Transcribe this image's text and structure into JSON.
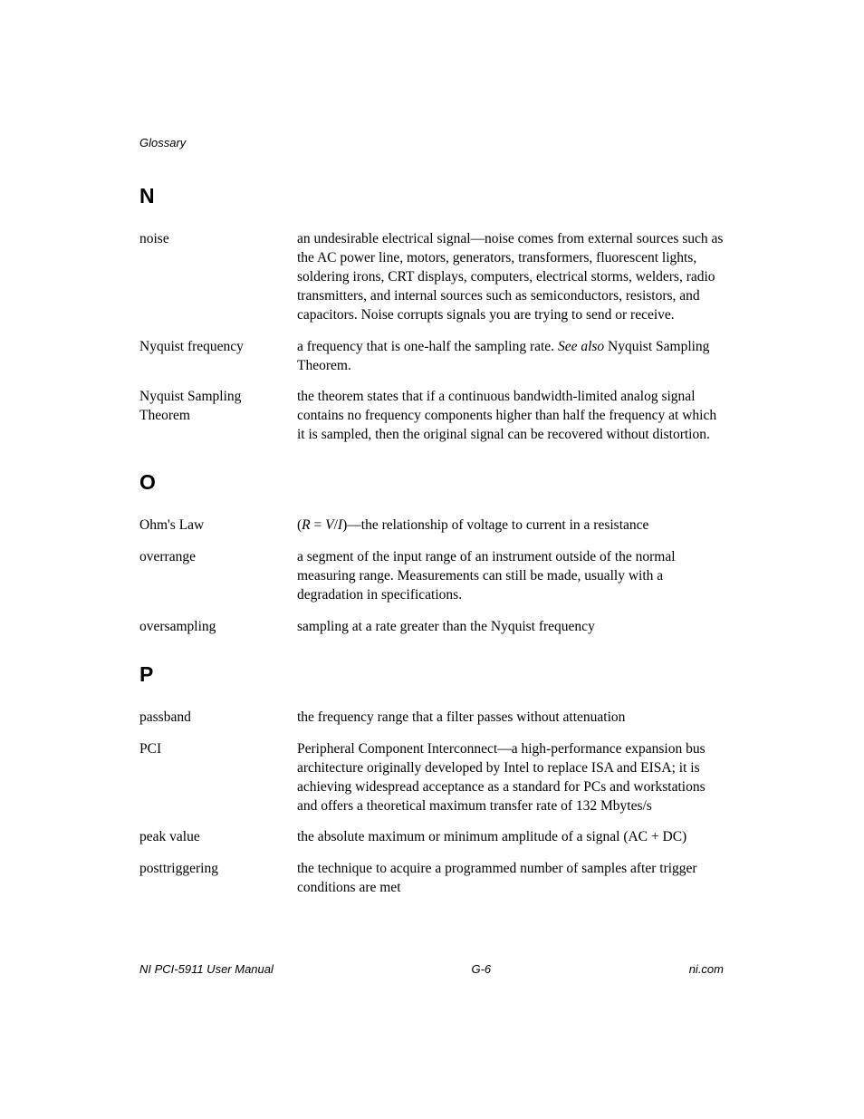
{
  "header": "Glossary",
  "sections": {
    "n": {
      "letter": "N",
      "entries": {
        "noise": {
          "term": "noise",
          "def": "an undesirable electrical signal—noise comes from external sources such as the AC power line, motors, generators, transformers, fluorescent lights, soldering irons, CRT displays, computers, electrical storms, welders, radio transmitters, and internal sources such as semiconductors, resistors, and capacitors. Noise corrupts signals you are trying to send or receive."
        },
        "nyquist_freq": {
          "term": "Nyquist frequency",
          "def_pre": "a frequency that is one-half the sampling rate. ",
          "see_also": "See also",
          "def_post": " Nyquist Sampling Theorem."
        },
        "nyquist_theorem": {
          "term": "Nyquist Sampling Theorem",
          "def": "the theorem states that if a continuous bandwidth-limited analog signal contains no frequency components higher than half the frequency at which it is sampled, then the original signal can be recovered without distortion."
        }
      }
    },
    "o": {
      "letter": "O",
      "entries": {
        "ohms_law": {
          "term": "Ohm's Law",
          "formula_open": "(",
          "formula_r": "R",
          "formula_eq": " = ",
          "formula_v": "V",
          "formula_slash": "/",
          "formula_i": "I",
          "formula_close": ")",
          "def_post": "—the relationship of voltage to current in a resistance"
        },
        "overrange": {
          "term": "overrange",
          "def": "a segment of the input range of an instrument outside of the normal measuring range. Measurements can still be made, usually with a degradation in specifications."
        },
        "oversampling": {
          "term": "oversampling",
          "def": "sampling at a rate greater than the Nyquist frequency"
        }
      }
    },
    "p": {
      "letter": "P",
      "entries": {
        "passband": {
          "term": "passband",
          "def": "the frequency range that a filter passes without attenuation"
        },
        "pci": {
          "term": "PCI",
          "def": "Peripheral Component Interconnect—a high-performance expansion bus architecture originally developed by Intel to replace ISA and EISA; it is achieving widespread acceptance as a standard for PCs and workstations and offers a theoretical maximum transfer rate of 132 Mbytes/s"
        },
        "peak_value": {
          "term": "peak value",
          "def": "the absolute maximum or minimum amplitude of a signal (AC + DC)"
        },
        "posttriggering": {
          "term": "posttriggering",
          "def": "the technique to acquire a programmed number of samples after trigger conditions are met"
        }
      }
    }
  },
  "footer": {
    "left": "NI PCI-5911 User Manual",
    "center": "G-6",
    "right": "ni.com"
  }
}
